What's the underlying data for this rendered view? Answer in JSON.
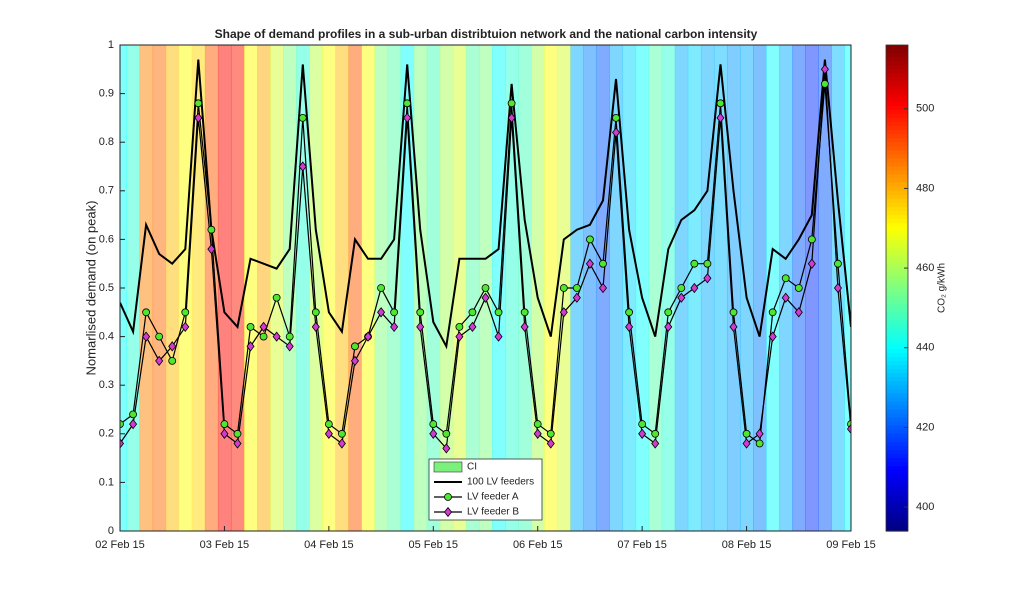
{
  "chart_data": {
    "type": "line",
    "title": "Shape of demand profiles in a sub-urban distribtuion network and the national carbon intensity",
    "y_label": "Nomarlised demand (on peak)",
    "x": [
      0,
      0.125,
      0.25,
      0.375,
      0.5,
      0.625,
      0.75,
      0.875,
      1,
      1.125,
      1.25,
      1.375,
      1.5,
      1.625,
      1.75,
      1.875,
      2,
      2.125,
      2.25,
      2.375,
      2.5,
      2.625,
      2.75,
      2.875,
      3,
      3.125,
      3.25,
      3.375,
      3.5,
      3.625,
      3.75,
      3.875,
      4,
      4.125,
      4.25,
      4.375,
      4.5,
      4.625,
      4.75,
      4.875,
      5,
      5.125,
      5.25,
      5.375,
      5.5,
      5.625,
      5.75,
      5.875,
      6,
      6.125,
      6.25,
      6.375,
      6.5,
      6.625,
      6.75,
      6.875,
      7
    ],
    "xlim": [
      0,
      7
    ],
    "xticks": [
      {
        "value": 0,
        "label": "02 Feb 15"
      },
      {
        "value": 1,
        "label": "03 Feb 15"
      },
      {
        "value": 2,
        "label": "04 Feb 15"
      },
      {
        "value": 3,
        "label": "05 Feb 15"
      },
      {
        "value": 4,
        "label": "06 Feb 15"
      },
      {
        "value": 5,
        "label": "07 Feb 15"
      },
      {
        "value": 6,
        "label": "08 Feb 15"
      },
      {
        "value": 7,
        "label": "09 Feb 15"
      }
    ],
    "ylim": [
      0,
      1
    ],
    "yticks": [
      0,
      0.1,
      0.2,
      0.3,
      0.4,
      0.5,
      0.6,
      0.7,
      0.8,
      0.9,
      1
    ],
    "legend": "lower center",
    "series": [
      {
        "name": "CI",
        "style": "background",
        "color": "#7cf07c",
        "colorbar_label": "CO₂ g/kWh",
        "clim": [
          394,
          516
        ],
        "cticks": [
          400,
          420,
          440,
          460,
          480,
          500
        ],
        "values": [
          440,
          445,
          485,
          488,
          478,
          470,
          475,
          490,
          500,
          498,
          470,
          480,
          465,
          455,
          445,
          462,
          470,
          478,
          490,
          470,
          455,
          450,
          440,
          455,
          448,
          460,
          465,
          450,
          455,
          440,
          445,
          448,
          460,
          470,
          465,
          430,
          425,
          420,
          430,
          435,
          440,
          450,
          445,
          430,
          435,
          430,
          432,
          428,
          430,
          425,
          440,
          430,
          420,
          415,
          420,
          432,
          440
        ]
      },
      {
        "name": "100 LV feeders",
        "style": "line",
        "color": "#000000",
        "values": [
          0.47,
          0.41,
          0.63,
          0.57,
          0.55,
          0.58,
          0.97,
          0.62,
          0.45,
          0.42,
          0.56,
          0.55,
          0.54,
          0.58,
          0.96,
          0.62,
          0.45,
          0.41,
          0.6,
          0.56,
          0.56,
          0.6,
          0.96,
          0.62,
          0.43,
          0.38,
          0.56,
          0.56,
          0.56,
          0.58,
          0.92,
          0.64,
          0.48,
          0.4,
          0.6,
          0.62,
          0.63,
          0.68,
          0.93,
          0.62,
          0.48,
          0.4,
          0.58,
          0.64,
          0.66,
          0.7,
          0.96,
          0.7,
          0.48,
          0.4,
          0.58,
          0.56,
          0.6,
          0.65,
          0.97,
          0.68,
          0.42
        ]
      },
      {
        "name": "LV feeder A",
        "style": "circle",
        "color": "#4ee62e",
        "line_color": "#000000",
        "values": [
          0.22,
          0.24,
          0.45,
          0.4,
          0.35,
          0.45,
          0.88,
          0.62,
          0.22,
          0.2,
          0.42,
          0.4,
          0.48,
          0.4,
          0.85,
          0.45,
          0.22,
          0.2,
          0.38,
          0.4,
          0.5,
          0.45,
          0.88,
          0.45,
          0.22,
          0.2,
          0.42,
          0.45,
          0.5,
          0.45,
          0.88,
          0.45,
          0.22,
          0.2,
          0.5,
          0.5,
          0.6,
          0.55,
          0.85,
          0.45,
          0.22,
          0.2,
          0.45,
          0.5,
          0.55,
          0.55,
          0.88,
          0.45,
          0.2,
          0.18,
          0.45,
          0.52,
          0.5,
          0.6,
          0.92,
          0.55,
          0.22
        ]
      },
      {
        "name": "LV feeder B",
        "style": "diamond",
        "color": "#d23ad2",
        "line_color": "#000000",
        "values": [
          0.18,
          0.22,
          0.4,
          0.35,
          0.38,
          0.42,
          0.85,
          0.58,
          0.2,
          0.18,
          0.38,
          0.42,
          0.4,
          0.38,
          0.75,
          0.42,
          0.2,
          0.18,
          0.35,
          0.4,
          0.45,
          0.42,
          0.85,
          0.42,
          0.2,
          0.17,
          0.4,
          0.42,
          0.48,
          0.4,
          0.85,
          0.42,
          0.2,
          0.18,
          0.45,
          0.48,
          0.55,
          0.5,
          0.82,
          0.42,
          0.2,
          0.18,
          0.42,
          0.48,
          0.5,
          0.52,
          0.85,
          0.42,
          0.18,
          0.2,
          0.4,
          0.48,
          0.45,
          0.55,
          0.95,
          0.5,
          0.21
        ]
      }
    ]
  }
}
